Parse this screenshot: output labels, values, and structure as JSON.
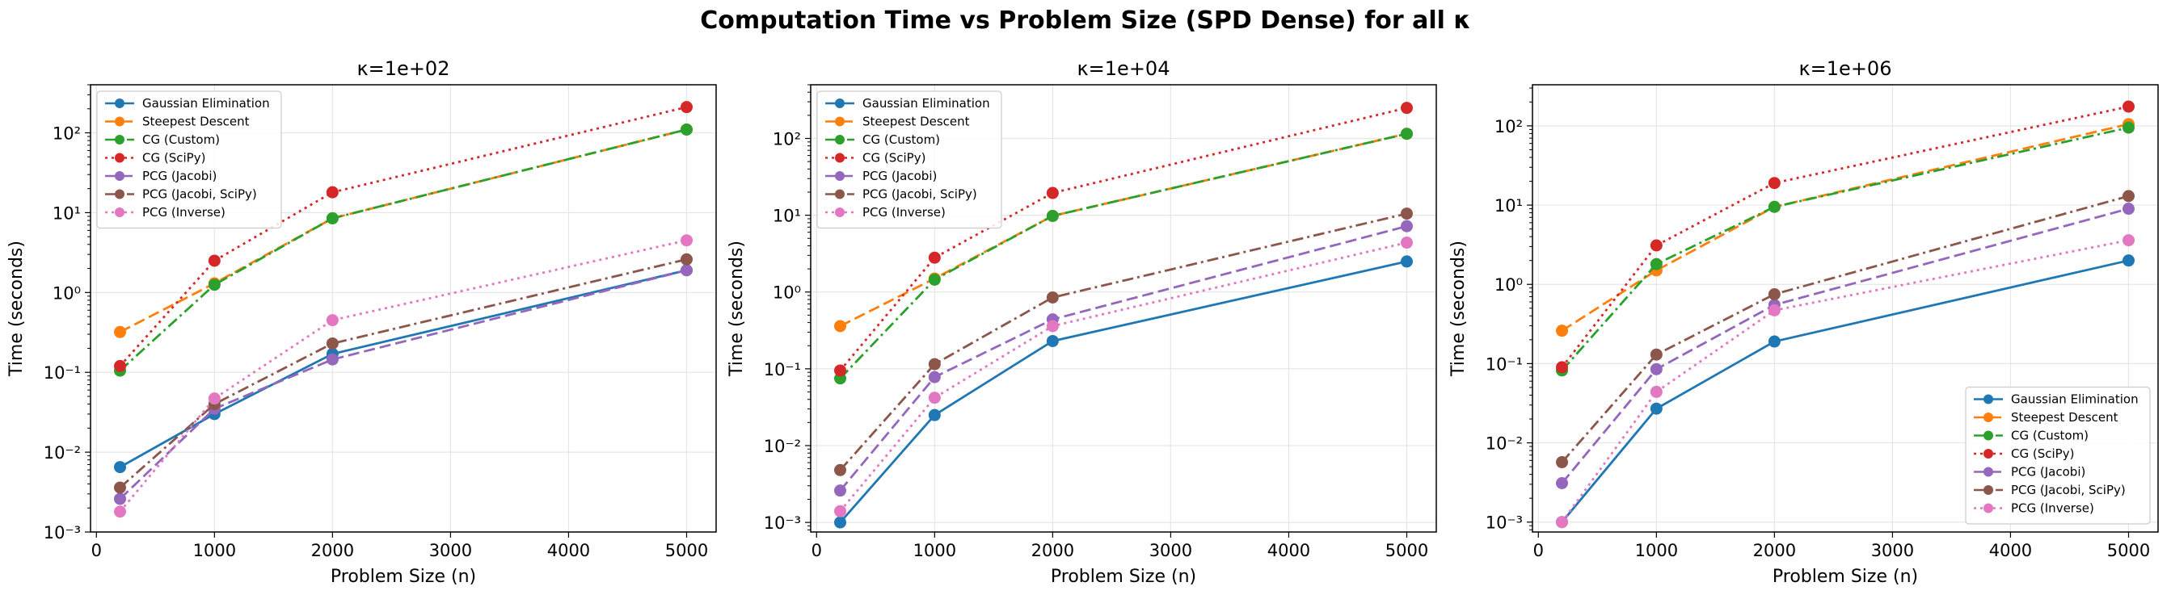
{
  "suptitle": "Computation Time vs Problem Size (SPD Dense) for all κ",
  "chart_data": [
    {
      "type": "line",
      "title": "κ=1e+02",
      "xlabel": "Problem Size (n)",
      "ylabel": "Time (seconds)",
      "yscale": "log",
      "xlim": [
        -50,
        5250
      ],
      "ylim": [
        0.001,
        400
      ],
      "xticks": [
        0,
        1000,
        2000,
        3000,
        4000,
        5000
      ],
      "ytick_exponents": [
        -3,
        -2,
        -1,
        0,
        1,
        2
      ],
      "grid": true,
      "legend_position": "upper-left",
      "x": [
        200,
        1000,
        2000,
        5000
      ],
      "series": [
        {
          "name": "Gaussian Elimination",
          "color": "#1f77b4",
          "dash": "solid",
          "values": [
            0.0065,
            0.03,
            0.17,
            1.9
          ]
        },
        {
          "name": "Steepest Descent",
          "color": "#ff7f0e",
          "dash": "dashed",
          "values": [
            0.32,
            1.3,
            8.5,
            110
          ]
        },
        {
          "name": "CG (Custom)",
          "color": "#2ca02c",
          "dash": "dashdot",
          "values": [
            0.105,
            1.25,
            8.5,
            110
          ]
        },
        {
          "name": "CG (SciPy)",
          "color": "#d62728",
          "dash": "dotted",
          "values": [
            0.12,
            2.5,
            18,
            210
          ]
        },
        {
          "name": "PCG (Jacobi)",
          "color": "#9467bd",
          "dash": "dashed",
          "values": [
            0.0026,
            0.035,
            0.145,
            1.9
          ]
        },
        {
          "name": "PCG (Jacobi, SciPy)",
          "color": "#8c564b",
          "dash": "dashdot",
          "values": [
            0.0036,
            0.04,
            0.23,
            2.6
          ]
        },
        {
          "name": "PCG (Inverse)",
          "color": "#e377c2",
          "dash": "dotted",
          "values": [
            0.0018,
            0.047,
            0.45,
            4.5
          ]
        }
      ]
    },
    {
      "type": "line",
      "title": "κ=1e+04",
      "xlabel": "Problem Size (n)",
      "ylabel": "Time (seconds)",
      "yscale": "log",
      "xlim": [
        -50,
        5250
      ],
      "ylim": [
        0.00075,
        500
      ],
      "xticks": [
        0,
        1000,
        2000,
        3000,
        4000,
        5000
      ],
      "ytick_exponents": [
        -3,
        -2,
        -1,
        0,
        1,
        2
      ],
      "grid": true,
      "legend_position": "upper-left",
      "x": [
        200,
        1000,
        2000,
        5000
      ],
      "series": [
        {
          "name": "Gaussian Elimination",
          "color": "#1f77b4",
          "dash": "solid",
          "values": [
            0.001,
            0.025,
            0.23,
            2.5
          ]
        },
        {
          "name": "Steepest Descent",
          "color": "#ff7f0e",
          "dash": "dashed",
          "values": [
            0.36,
            1.5,
            9.8,
            115
          ]
        },
        {
          "name": "CG (Custom)",
          "color": "#2ca02c",
          "dash": "dashdot",
          "values": [
            0.075,
            1.45,
            9.8,
            115
          ]
        },
        {
          "name": "CG (SciPy)",
          "color": "#d62728",
          "dash": "dotted",
          "values": [
            0.095,
            2.8,
            19.5,
            250
          ]
        },
        {
          "name": "PCG (Jacobi)",
          "color": "#9467bd",
          "dash": "dashed",
          "values": [
            0.0026,
            0.078,
            0.44,
            7.2
          ]
        },
        {
          "name": "PCG (Jacobi, SciPy)",
          "color": "#8c564b",
          "dash": "dashdot",
          "values": [
            0.0048,
            0.115,
            0.85,
            10.5
          ]
        },
        {
          "name": "PCG (Inverse)",
          "color": "#e377c2",
          "dash": "dotted",
          "values": [
            0.0014,
            0.042,
            0.36,
            4.4
          ]
        }
      ]
    },
    {
      "type": "line",
      "title": "κ=1e+06",
      "xlabel": "Problem Size (n)",
      "ylabel": "Time (seconds)",
      "yscale": "log",
      "xlim": [
        -50,
        5250
      ],
      "ylim": [
        0.00075,
        330
      ],
      "xticks": [
        0,
        1000,
        2000,
        3000,
        4000,
        5000
      ],
      "ytick_exponents": [
        -3,
        -2,
        -1,
        0,
        1,
        2
      ],
      "grid": true,
      "legend_position": "lower-right",
      "x": [
        200,
        1000,
        2000,
        5000
      ],
      "series": [
        {
          "name": "Gaussian Elimination",
          "color": "#1f77b4",
          "dash": "solid",
          "values": [
            0.001,
            0.027,
            0.19,
            2.0
          ]
        },
        {
          "name": "Steepest Descent",
          "color": "#ff7f0e",
          "dash": "dashed",
          "values": [
            0.26,
            1.5,
            9.5,
            105
          ]
        },
        {
          "name": "CG (Custom)",
          "color": "#2ca02c",
          "dash": "dashdot",
          "values": [
            0.082,
            1.8,
            9.5,
            95
          ]
        },
        {
          "name": "CG (SciPy)",
          "color": "#d62728",
          "dash": "dotted",
          "values": [
            0.09,
            3.1,
            19,
            175
          ]
        },
        {
          "name": "PCG (Jacobi)",
          "color": "#9467bd",
          "dash": "dashed",
          "values": [
            0.0031,
            0.085,
            0.55,
            9.0
          ]
        },
        {
          "name": "PCG (Jacobi, SciPy)",
          "color": "#8c564b",
          "dash": "dashdot",
          "values": [
            0.0057,
            0.13,
            0.75,
            13
          ]
        },
        {
          "name": "PCG (Inverse)",
          "color": "#e377c2",
          "dash": "dotted",
          "values": [
            0.001,
            0.044,
            0.47,
            3.6
          ]
        }
      ]
    }
  ]
}
